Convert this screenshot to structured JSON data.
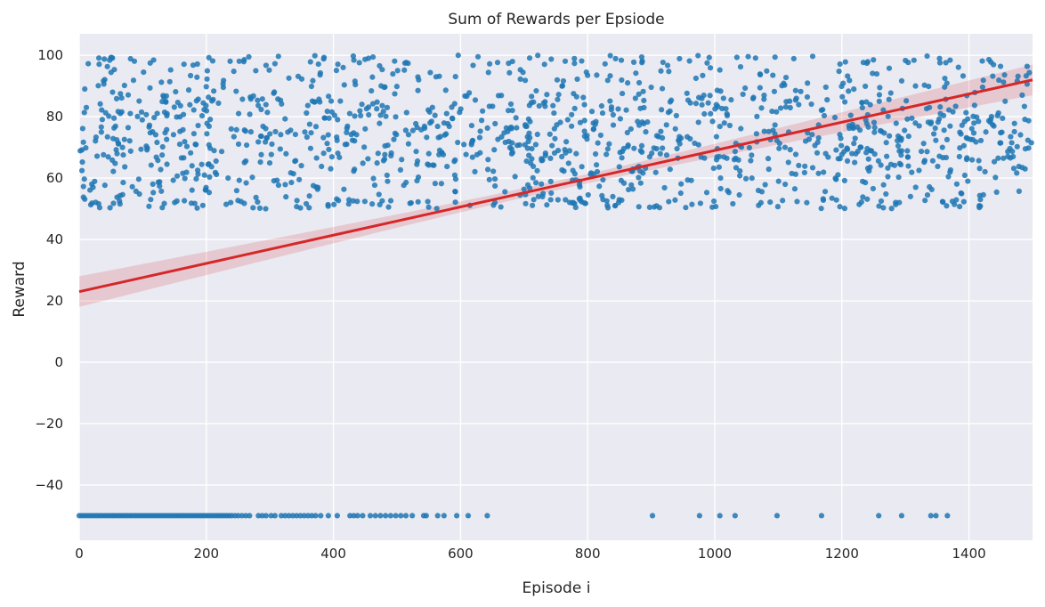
{
  "chart_data": {
    "type": "scatter",
    "title": "Sum of Rewards per Epsiode",
    "xlabel": "Episode i",
    "ylabel": "Reward",
    "xlim": [
      0,
      1500
    ],
    "ylim": [
      -58,
      107
    ],
    "x_ticks": [
      0,
      200,
      400,
      600,
      800,
      1000,
      1200,
      1400
    ],
    "y_ticks": [
      -40,
      -20,
      0,
      20,
      40,
      60,
      80,
      100
    ],
    "grid": true,
    "background_color": "#eaeaf2",
    "point_color": "#1f77b4",
    "regression_color": "#d62728",
    "regression": {
      "x": [
        0,
        1500
      ],
      "y": [
        23,
        92
      ],
      "ci_half_width_at_ends": 5,
      "ci_half_width_at_center": 1.5
    },
    "failed_episodes": {
      "value": -50,
      "x": [
        0,
        4,
        8,
        12,
        16,
        20,
        24,
        28,
        32,
        36,
        40,
        44,
        48,
        52,
        56,
        60,
        64,
        68,
        72,
        76,
        80,
        84,
        88,
        92,
        96,
        100,
        104,
        108,
        112,
        116,
        120,
        124,
        128,
        132,
        136,
        140,
        144,
        148,
        152,
        156,
        160,
        164,
        168,
        172,
        176,
        180,
        184,
        188,
        192,
        196,
        200,
        204,
        208,
        212,
        216,
        220,
        224,
        228,
        232,
        236,
        240,
        245,
        250,
        256,
        262,
        268,
        282,
        288,
        294,
        302,
        308,
        318,
        324,
        330,
        336,
        342,
        348,
        354,
        360,
        366,
        372,
        380,
        392,
        406,
        426,
        432,
        438,
        446,
        458,
        466,
        474,
        482,
        490,
        498,
        506,
        514,
        524,
        542,
        546,
        564,
        574,
        594,
        612,
        642,
        902,
        976,
        1008,
        1032,
        1098,
        1168,
        1258,
        1294,
        1340,
        1348,
        1366
      ]
    },
    "success_band": {
      "description_ymin": 50,
      "description_ymax": 100,
      "point_count": 1380,
      "x_range": [
        0,
        1500
      ]
    }
  }
}
